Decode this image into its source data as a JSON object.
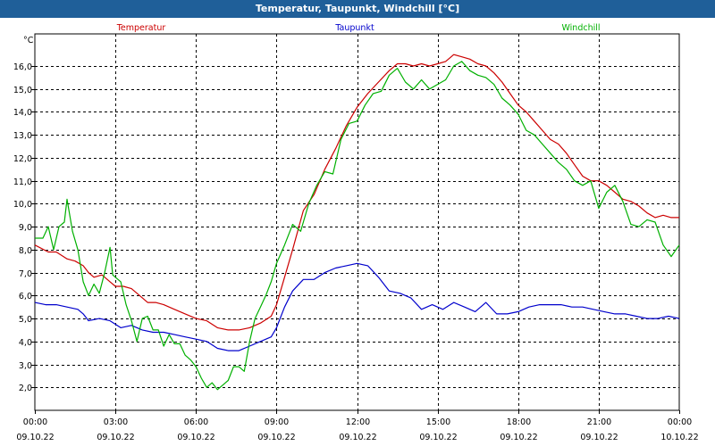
{
  "window": {
    "title": "Temperatur, Taupunkt, Windchill [°C]"
  },
  "chart_data": {
    "type": "line",
    "title": "Temperatur, Taupunkt, Windchill [°C]",
    "ylabel": "°C",
    "ylim": [
      1.0,
      17.4
    ],
    "xlim": [
      0,
      24
    ],
    "grid": true,
    "legend_position": "top",
    "y_ticks": [
      {
        "value": 2,
        "label": "2,0"
      },
      {
        "value": 3,
        "label": "3,0"
      },
      {
        "value": 4,
        "label": "4,0"
      },
      {
        "value": 5,
        "label": "5,0"
      },
      {
        "value": 6,
        "label": "6,0"
      },
      {
        "value": 7,
        "label": "7,0"
      },
      {
        "value": 8,
        "label": "8,0"
      },
      {
        "value": 9,
        "label": "9,0"
      },
      {
        "value": 10,
        "label": "10,0"
      },
      {
        "value": 11,
        "label": "11,0"
      },
      {
        "value": 12,
        "label": "12,0"
      },
      {
        "value": 13,
        "label": "13,0"
      },
      {
        "value": 14,
        "label": "14,0"
      },
      {
        "value": 15,
        "label": "15,0"
      },
      {
        "value": 16,
        "label": "16,0"
      }
    ],
    "x_ticks": [
      {
        "value": 0,
        "time": "00:00",
        "date": "09.10.22"
      },
      {
        "value": 3,
        "time": "03:00",
        "date": "09.10.22"
      },
      {
        "value": 6,
        "time": "06:00",
        "date": "09.10.22"
      },
      {
        "value": 9,
        "time": "09:00",
        "date": "09.10.22"
      },
      {
        "value": 12,
        "time": "12:00",
        "date": "09.10.22"
      },
      {
        "value": 15,
        "time": "15:00",
        "date": "09.10.22"
      },
      {
        "value": 18,
        "time": "18:00",
        "date": "09.10.22"
      },
      {
        "value": 21,
        "time": "21:00",
        "date": "09.10.22"
      },
      {
        "value": 24,
        "time": "00:00",
        "date": "10.10.22"
      }
    ],
    "series": [
      {
        "name": "Temperatur",
        "color": "#cc0000",
        "x": [
          0,
          0.5,
          0.8,
          1.2,
          1.5,
          1.8,
          2.0,
          2.2,
          2.5,
          2.8,
          3.0,
          3.3,
          3.6,
          3.9,
          4.2,
          4.5,
          4.8,
          5.2,
          5.6,
          6.0,
          6.4,
          6.8,
          7.2,
          7.6,
          8.0,
          8.4,
          8.8,
          9.0,
          9.3,
          9.6,
          10.0,
          10.4,
          10.8,
          11.2,
          11.6,
          12.0,
          12.4,
          12.8,
          13.2,
          13.5,
          13.8,
          14.1,
          14.4,
          14.7,
          15.0,
          15.3,
          15.6,
          15.9,
          16.2,
          16.5,
          16.8,
          17.1,
          17.4,
          17.7,
          18.0,
          18.3,
          18.6,
          18.9,
          19.2,
          19.5,
          19.8,
          20.1,
          20.4,
          20.7,
          21.0,
          21.3,
          21.6,
          21.9,
          22.2,
          22.5,
          22.8,
          23.1,
          23.4,
          23.7,
          24.0
        ],
        "values": [
          8.2,
          7.9,
          7.9,
          7.6,
          7.5,
          7.3,
          7.0,
          6.8,
          6.9,
          6.6,
          6.4,
          6.4,
          6.3,
          6.0,
          5.7,
          5.7,
          5.6,
          5.4,
          5.2,
          5.0,
          4.9,
          4.6,
          4.5,
          4.5,
          4.6,
          4.8,
          5.1,
          5.6,
          6.8,
          8.0,
          9.7,
          10.4,
          11.5,
          12.4,
          13.4,
          14.2,
          14.8,
          15.3,
          15.8,
          16.1,
          16.1,
          16.0,
          16.1,
          16.0,
          16.1,
          16.2,
          16.5,
          16.4,
          16.3,
          16.1,
          16.0,
          15.7,
          15.3,
          14.8,
          14.3,
          14.0,
          13.6,
          13.2,
          12.8,
          12.6,
          12.2,
          11.7,
          11.2,
          11.0,
          11.0,
          10.8,
          10.5,
          10.2,
          10.1,
          9.9,
          9.6,
          9.4,
          9.5,
          9.4,
          9.4
        ]
      },
      {
        "name": "Taupunkt",
        "color": "#0000cc",
        "x": [
          0,
          0.4,
          0.8,
          1.2,
          1.6,
          1.8,
          2.0,
          2.4,
          2.8,
          3.2,
          3.6,
          4.0,
          4.4,
          4.8,
          5.2,
          5.6,
          6.0,
          6.4,
          6.8,
          7.2,
          7.6,
          8.0,
          8.4,
          8.8,
          9.0,
          9.3,
          9.6,
          10.0,
          10.4,
          10.8,
          11.2,
          11.6,
          12.0,
          12.4,
          12.8,
          13.2,
          13.6,
          14.0,
          14.4,
          14.8,
          15.2,
          15.6,
          16.0,
          16.4,
          16.8,
          17.2,
          17.6,
          18.0,
          18.4,
          18.8,
          19.2,
          19.6,
          20.0,
          20.4,
          20.8,
          21.2,
          21.6,
          22.0,
          22.4,
          22.8,
          23.2,
          23.6,
          24.0
        ],
        "values": [
          5.7,
          5.6,
          5.6,
          5.5,
          5.4,
          5.2,
          4.9,
          5.0,
          4.9,
          4.6,
          4.7,
          4.5,
          4.4,
          4.4,
          4.3,
          4.2,
          4.1,
          4.0,
          3.7,
          3.6,
          3.6,
          3.8,
          4.0,
          4.2,
          4.6,
          5.5,
          6.2,
          6.7,
          6.7,
          7.0,
          7.2,
          7.3,
          7.4,
          7.3,
          6.8,
          6.2,
          6.1,
          5.9,
          5.4,
          5.6,
          5.4,
          5.7,
          5.5,
          5.3,
          5.7,
          5.2,
          5.2,
          5.3,
          5.5,
          5.6,
          5.6,
          5.6,
          5.5,
          5.5,
          5.4,
          5.3,
          5.2,
          5.2,
          5.1,
          5.0,
          5.0,
          5.1,
          5.0
        ]
      },
      {
        "name": "Windchill",
        "color": "#00b000",
        "x": [
          0,
          0.3,
          0.5,
          0.7,
          0.9,
          1.1,
          1.2,
          1.4,
          1.6,
          1.8,
          2.0,
          2.2,
          2.4,
          2.6,
          2.8,
          2.9,
          3.0,
          3.2,
          3.4,
          3.6,
          3.8,
          4.0,
          4.2,
          4.4,
          4.6,
          4.8,
          5.0,
          5.2,
          5.4,
          5.6,
          5.8,
          6.0,
          6.2,
          6.4,
          6.6,
          6.8,
          7.0,
          7.2,
          7.4,
          7.6,
          7.8,
          8.0,
          8.2,
          8.4,
          8.6,
          8.8,
          9.0,
          9.3,
          9.6,
          9.9,
          10.2,
          10.5,
          10.8,
          11.1,
          11.4,
          11.7,
          12.0,
          12.3,
          12.6,
          12.9,
          13.2,
          13.5,
          13.8,
          14.1,
          14.4,
          14.7,
          15.0,
          15.3,
          15.6,
          15.9,
          16.2,
          16.5,
          16.8,
          17.1,
          17.4,
          17.7,
          18.0,
          18.3,
          18.6,
          18.9,
          19.2,
          19.5,
          19.8,
          20.1,
          20.4,
          20.7,
          21.0,
          21.3,
          21.6,
          21.9,
          22.2,
          22.5,
          22.8,
          23.1,
          23.4,
          23.7,
          24.0
        ],
        "values": [
          8.5,
          8.5,
          9.0,
          8.0,
          9.0,
          9.2,
          10.2,
          8.8,
          8.0,
          6.6,
          6.0,
          6.5,
          6.1,
          7.0,
          8.1,
          6.9,
          6.8,
          6.6,
          5.6,
          4.9,
          4.0,
          5.0,
          5.1,
          4.5,
          4.5,
          3.8,
          4.3,
          3.9,
          3.9,
          3.4,
          3.2,
          2.9,
          2.4,
          2.0,
          2.2,
          1.9,
          2.1,
          2.3,
          2.9,
          2.9,
          2.7,
          4.0,
          5.0,
          5.5,
          6.0,
          6.6,
          7.4,
          8.2,
          9.1,
          8.8,
          10.0,
          10.8,
          11.4,
          11.3,
          12.8,
          13.5,
          13.6,
          14.3,
          14.8,
          14.9,
          15.6,
          15.9,
          15.3,
          15.0,
          15.4,
          15.0,
          15.2,
          15.4,
          16.0,
          16.2,
          15.8,
          15.6,
          15.5,
          15.2,
          14.6,
          14.3,
          13.9,
          13.2,
          13.0,
          12.6,
          12.2,
          11.8,
          11.5,
          11.0,
          10.8,
          11.0,
          9.8,
          10.5,
          10.8,
          10.1,
          9.1,
          9.0,
          9.3,
          9.2,
          8.2,
          7.7,
          8.2
        ]
      }
    ]
  }
}
